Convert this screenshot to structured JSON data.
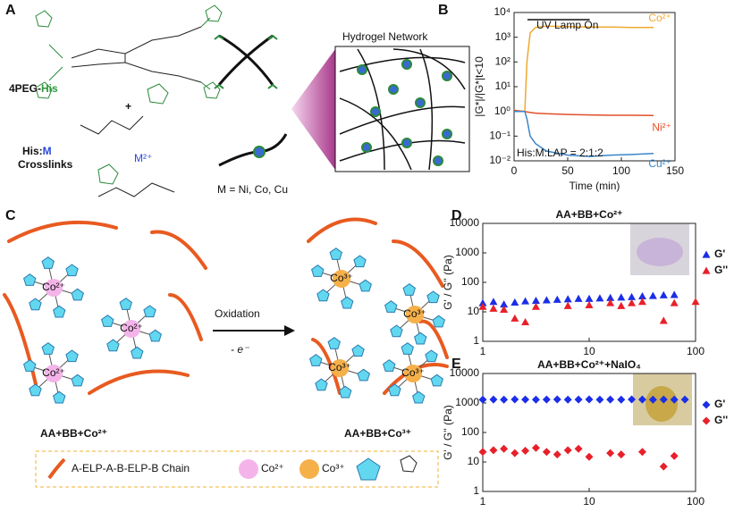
{
  "figure": {
    "panel_labels": [
      "A",
      "B",
      "C",
      "D",
      "E"
    ],
    "panel_a": {
      "peg_prefix": "4PEG-",
      "peg_his": "His",
      "plus": "+",
      "crosslink_his": "His:",
      "crosslink_m": "M",
      "crosslink_word": "Crosslinks",
      "metal_ion": "M²⁺",
      "metals": "M = Ni, Co, Cu",
      "network_title": "Hydrogel Network"
    },
    "panel_c": {
      "arrow_label": "Oxidation",
      "electron": "- e⁻",
      "left_label": "AA+BB+Co²⁺",
      "right_label": "AA+BB+Co³⁺",
      "center_left": "Co²⁺",
      "center_right": "Co³⁺",
      "legend": [
        "A-ELP-A-B-ELP-B Chain",
        "Co²⁺",
        "Co³⁺"
      ]
    }
  },
  "chart_data": [
    {
      "type": "line",
      "ylabel": "|G*|/|G*|t<10",
      "xlabel": "Time (min)",
      "yscale": "log",
      "legend": "inline",
      "annotations": [
        "UV Lamp On",
        "His:M:LAP = 2:1:2"
      ],
      "x": [
        0,
        5,
        10,
        12,
        15,
        20,
        30,
        50,
        70,
        90,
        110,
        130
      ],
      "series": [
        {
          "name": "Co²⁺",
          "color": "#f0a830",
          "values": [
            1,
            1,
            1,
            100,
            1500,
            2500,
            2800,
            2700,
            2600,
            2600,
            2500,
            2500
          ]
        },
        {
          "name": "Ni²⁺",
          "color": "#e0502a",
          "values": [
            1.1,
            1.05,
            1,
            0.95,
            0.9,
            0.85,
            0.8,
            0.75,
            0.72,
            0.7,
            0.7,
            0.68
          ]
        },
        {
          "name": "Cu²⁺",
          "color": "#3a86c8",
          "values": [
            1,
            1,
            1,
            0.5,
            0.1,
            0.05,
            0.025,
            0.017,
            0.015,
            0.017,
            0.018,
            0.02
          ]
        }
      ],
      "xlim": [
        0,
        150
      ],
      "xticks": [
        0,
        50,
        100,
        150
      ],
      "ylim": [
        0.01,
        10000
      ],
      "yticks": [
        {
          "value": 0.01,
          "label": "10⁻²"
        },
        {
          "value": 0.1,
          "label": "10⁻¹"
        },
        {
          "value": 1,
          "label": "10⁰"
        },
        {
          "value": 10,
          "label": "10¹"
        },
        {
          "value": 100,
          "label": "10²"
        },
        {
          "value": 1000,
          "label": "10³"
        },
        {
          "value": 10000,
          "label": "10⁴"
        }
      ]
    },
    {
      "type": "scatter",
      "title": "AA+BB+Co²⁺",
      "ylabel": "G' / G'' (Pa)",
      "xscale": "log",
      "yscale": "log",
      "legend": "right",
      "series": [
        {
          "name": "G'",
          "color": "#1a2ee8",
          "marker": "triangle",
          "x": [
            1,
            1.26,
            1.58,
            2,
            2.51,
            3.16,
            3.98,
            5.01,
            6.31,
            7.94,
            10,
            12.6,
            15.8,
            20,
            25.1,
            31.6,
            39.8,
            50.1,
            63.1
          ],
          "values": [
            20,
            22,
            18,
            21,
            23,
            24,
            25,
            26,
            27,
            28,
            28,
            29,
            30,
            31,
            32,
            34,
            35,
            37,
            38
          ]
        },
        {
          "name": "G''",
          "color": "#e8202a",
          "marker": "triangle",
          "x": [
            1,
            1.26,
            1.58,
            2,
            2.51,
            3.16,
            6.31,
            10,
            15.8,
            20,
            25.1,
            31.6,
            50.1,
            63.1,
            100
          ],
          "values": [
            15,
            13,
            12,
            6,
            4.5,
            15,
            16,
            17,
            20,
            16,
            20,
            22,
            5,
            20,
            22
          ]
        }
      ],
      "xlim": [
        1,
        100
      ],
      "xticks": [
        1,
        10,
        100
      ],
      "ylim": [
        1,
        10000
      ],
      "yticks": [
        1,
        10,
        100,
        1000,
        10000
      ]
    },
    {
      "type": "scatter",
      "title": "AA+BB+Co²⁺+NaIO₄",
      "ylabel": "G' / G'' (Pa)",
      "xlabel": "ω (rad/sec)",
      "xscale": "log",
      "yscale": "log",
      "legend": "right",
      "series": [
        {
          "name": "G'",
          "color": "#1a2ee8",
          "marker": "diamond",
          "x": [
            1,
            1.26,
            1.58,
            2,
            2.51,
            3.16,
            3.98,
            5.01,
            6.31,
            7.94,
            10,
            12.6,
            15.8,
            20,
            25.1,
            31.6,
            39.8,
            50.1,
            63.1,
            79.4
          ],
          "values": [
            1300,
            1310,
            1300,
            1320,
            1310,
            1300,
            1310,
            1320,
            1300,
            1310,
            1320,
            1300,
            1310,
            1300,
            1320,
            1310,
            1300,
            1310,
            1300,
            1310
          ]
        },
        {
          "name": "G''",
          "color": "#e8202a",
          "marker": "diamond",
          "x": [
            1,
            1.26,
            1.58,
            2,
            2.51,
            3.16,
            3.98,
            5.01,
            6.31,
            7.94,
            10,
            15.8,
            20,
            31.6,
            50.1,
            63.1
          ],
          "values": [
            22,
            25,
            28,
            20,
            24,
            30,
            22,
            18,
            25,
            28,
            15,
            20,
            18,
            22,
            7,
            16
          ]
        }
      ],
      "xlim": [
        1,
        100
      ],
      "xticks": [
        1,
        10,
        100
      ],
      "ylim": [
        1,
        10000
      ],
      "yticks": [
        1,
        10,
        100,
        1000,
        10000
      ]
    }
  ]
}
